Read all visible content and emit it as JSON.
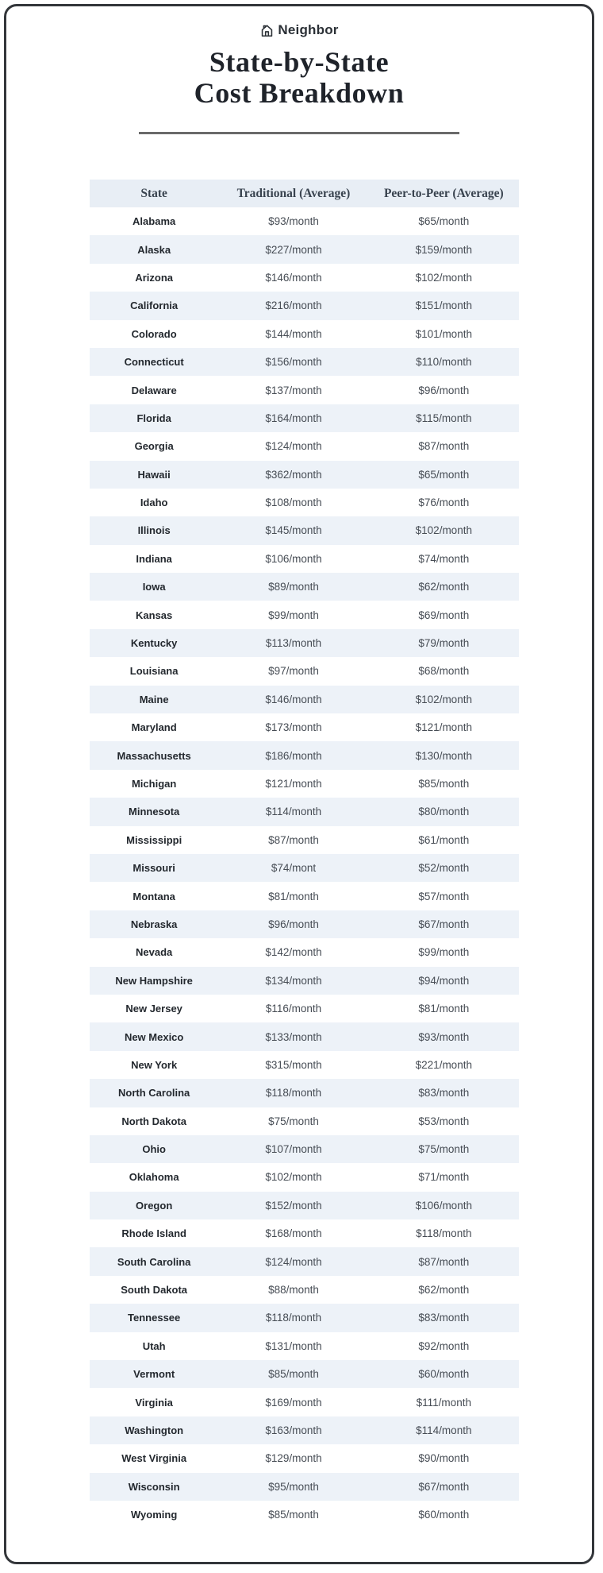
{
  "brand": {
    "name": "Neighbor",
    "icon": "house-icon"
  },
  "title": {
    "line1": "State-by-State",
    "line2": "Cost Breakdown"
  },
  "colors": {
    "card_border": "#33363a",
    "header_bg": "#e8eef5",
    "row_stripe": "#edf2f8",
    "title_text": "#1f232a"
  },
  "chart_data": {
    "type": "table",
    "title": "State-by-State Cost Breakdown",
    "columns": [
      "State",
      "Traditional (Average)",
      "Peer-to-Peer (Average)"
    ],
    "rows": [
      [
        "Alabama",
        "$93/month",
        "$65/month"
      ],
      [
        "Alaska",
        "$227/month",
        "$159/month"
      ],
      [
        "Arizona",
        "$146/month",
        "$102/month"
      ],
      [
        "California",
        "$216/month",
        "$151/month"
      ],
      [
        "Colorado",
        "$144/month",
        "$101/month"
      ],
      [
        "Connecticut",
        "$156/month",
        "$110/month"
      ],
      [
        "Delaware",
        "$137/month",
        "$96/month"
      ],
      [
        "Florida",
        "$164/month",
        "$115/month"
      ],
      [
        "Georgia",
        "$124/month",
        "$87/month"
      ],
      [
        "Hawaii",
        "$362/month",
        "$65/month"
      ],
      [
        "Idaho",
        "$108/month",
        "$76/month"
      ],
      [
        "Illinois",
        "$145/month",
        "$102/month"
      ],
      [
        "Indiana",
        "$106/month",
        "$74/month"
      ],
      [
        "Iowa",
        "$89/month",
        "$62/month"
      ],
      [
        "Kansas",
        "$99/month",
        "$69/month"
      ],
      [
        "Kentucky",
        "$113/month",
        "$79/month"
      ],
      [
        "Louisiana",
        "$97/month",
        "$68/month"
      ],
      [
        "Maine",
        "$146/month",
        "$102/month"
      ],
      [
        "Maryland",
        "$173/month",
        "$121/month"
      ],
      [
        "Massachusetts",
        "$186/month",
        "$130/month"
      ],
      [
        "Michigan",
        "$121/month",
        "$85/month"
      ],
      [
        "Minnesota",
        "$114/month",
        "$80/month"
      ],
      [
        "Mississippi",
        "$87/month",
        "$61/month"
      ],
      [
        "Missouri",
        "$74/mont",
        "$52/month"
      ],
      [
        "Montana",
        "$81/month",
        "$57/month"
      ],
      [
        "Nebraska",
        "$96/month",
        "$67/month"
      ],
      [
        "Nevada",
        "$142/month",
        "$99/month"
      ],
      [
        "New Hampshire",
        "$134/month",
        "$94/month"
      ],
      [
        "New Jersey",
        "$116/month",
        "$81/month"
      ],
      [
        "New Mexico",
        "$133/month",
        "$93/month"
      ],
      [
        "New York",
        "$315/month",
        "$221/month"
      ],
      [
        "North Carolina",
        "$118/month",
        "$83/month"
      ],
      [
        "North Dakota",
        "$75/month",
        "$53/month"
      ],
      [
        "Ohio",
        "$107/month",
        "$75/month"
      ],
      [
        "Oklahoma",
        "$102/month",
        "$71/month"
      ],
      [
        "Oregon",
        "$152/month",
        "$106/month"
      ],
      [
        "Rhode Island",
        "$168/month",
        "$118/month"
      ],
      [
        "South Carolina",
        "$124/month",
        "$87/month"
      ],
      [
        "South Dakota",
        "$88/month",
        "$62/month"
      ],
      [
        "Tennessee",
        "$118/month",
        "$83/month"
      ],
      [
        "Utah",
        "$131/month",
        "$92/month"
      ],
      [
        "Vermont",
        "$85/month",
        "$60/month"
      ],
      [
        "Virginia",
        "$169/month",
        "$111/month"
      ],
      [
        "Washington",
        "$163/month",
        "$114/month"
      ],
      [
        "West Virginia",
        "$129/month",
        "$90/month"
      ],
      [
        "Wisconsin",
        "$95/month",
        "$67/month"
      ],
      [
        "Wyoming",
        "$85/month",
        "$60/month"
      ]
    ]
  }
}
